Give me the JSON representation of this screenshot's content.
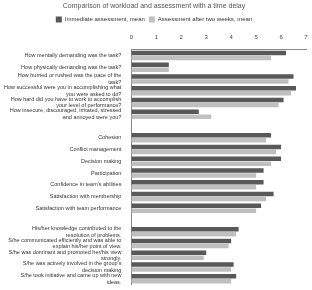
{
  "chart_data": {
    "type": "bar",
    "orientation": "horizontal",
    "title": "Comparison of workload and assessment with a time delay",
    "categories": [
      "How mentally demanding was the task?",
      "How physically demanding was the task?",
      "How hurried or rushed was the pace of the task?",
      "How successful were you in accomplishing what you were asked to do?",
      "How hard did you have to work to accomplish your level of performance?",
      "How insecure, discouraged, irritated, stressed and annoyed were you?",
      null,
      "Cohesion",
      "Conflict management",
      "Decision making",
      "Participation",
      "Confidence in team's abilities",
      "Satisfaction with membership",
      "Satisfaction with team performance",
      null,
      "His/her knowledge contributed to the resolution of problems.",
      "S/he communicated efficiently and was able to explain his/her point of view.",
      "S/he was dominant and promoted her/his view strongly.",
      "S/he was actively involved in the group's decision making",
      "S/he took initiative and came up with new ideas."
    ],
    "series": [
      {
        "name": "Immediate assessment, mean",
        "color": "#595959",
        "values": [
          6.2,
          1.5,
          6.5,
          6.6,
          6.1,
          2.7,
          null,
          5.6,
          6.0,
          6.0,
          5.3,
          5.3,
          5.7,
          5.2,
          null,
          4.3,
          4.0,
          3.0,
          4.1,
          4.2
        ]
      },
      {
        "name": "Assessment after two weeks, mean",
        "color": "#bfbfbf",
        "values": [
          5.6,
          1.5,
          6.3,
          6.4,
          5.9,
          3.2,
          null,
          5.4,
          5.8,
          5.6,
          5.0,
          5.0,
          5.4,
          5.0,
          null,
          4.2,
          3.9,
          2.9,
          4.0,
          4.0
        ]
      }
    ],
    "xlim": [
      0,
      7
    ],
    "xticks": [
      0,
      1,
      2,
      3,
      4,
      5,
      6,
      7
    ],
    "legend": "top",
    "grid": false
  }
}
